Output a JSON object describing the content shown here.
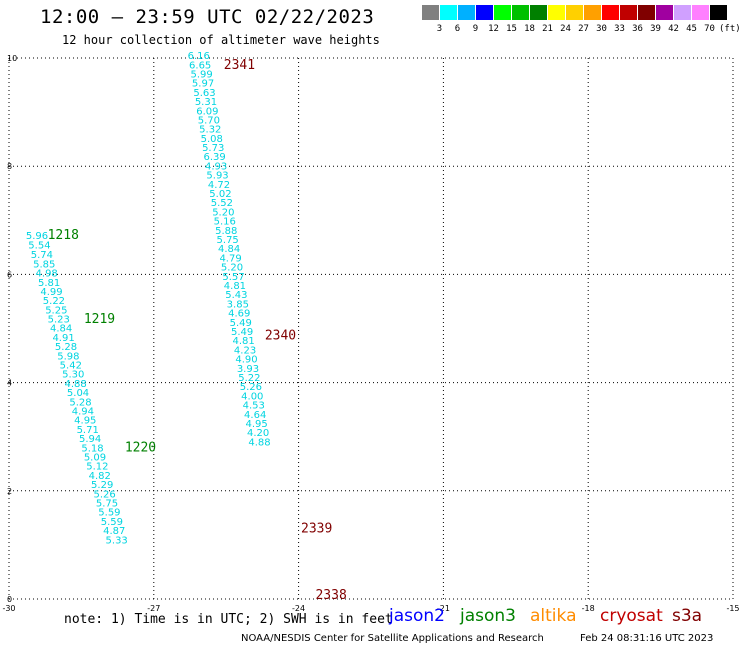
{
  "header": {
    "title": "12:00 – 23:59 UTC 02/22/2023",
    "subtitle": "12 hour collection of altimeter wave heights"
  },
  "scale": {
    "labels": [
      "3",
      "6",
      "9",
      "12",
      "15",
      "18",
      "21",
      "24",
      "27",
      "30",
      "33",
      "36",
      "39",
      "42",
      "45",
      "70",
      "(ft)"
    ],
    "colors": [
      "#808080",
      "#00ffff",
      "#00b0ff",
      "#0000ff",
      "#00ff00",
      "#00c000",
      "#008000",
      "#ffff00",
      "#ffd000",
      "#ffa000",
      "#ff0000",
      "#c00000",
      "#800000",
      "#a000a0",
      "#d0a0ff",
      "#ff80ff",
      "#000000"
    ]
  },
  "footer": {
    "note": "note: 1) Time is in UTC; 2) SWH is in feet",
    "missions": [
      {
        "name": "jason2",
        "color": "#0000ff"
      },
      {
        "name": "jason3",
        "color": "#008000"
      },
      {
        "name": "altika",
        "color": "#ff8c00"
      },
      {
        "name": "cryosat",
        "color": "#c00000"
      },
      {
        "name": "s3a",
        "color": "#800000"
      }
    ],
    "credit": "NOAA/NESDIS Center for Satellite Applications and Research",
    "timestamp": "Feb 24 08:31:16 UTC 2023"
  },
  "chart_data": {
    "type": "scatter",
    "xlim": [
      -30,
      -15
    ],
    "ylim": [
      0,
      10
    ],
    "x_ticks": [
      "-30",
      "-27",
      "-24",
      "-21",
      "-18",
      "-15"
    ],
    "y_ticks": [
      "0",
      "2",
      "4",
      "6",
      "8",
      "10"
    ],
    "grid": true,
    "tracks": [
      {
        "pass": "1218",
        "color": "#008000",
        "label_at": [
          -29.2,
          6.65
        ],
        "values": [
          [
            -29.65,
            6.65,
            "5.96"
          ],
          [
            -29.6,
            6.48,
            "5.54"
          ],
          [
            -29.55,
            6.3,
            "5.74"
          ],
          [
            -29.5,
            6.13,
            "5.85"
          ],
          [
            -29.45,
            5.96,
            "4.98"
          ],
          [
            -29.4,
            5.79,
            "5.81"
          ],
          [
            -29.35,
            5.62,
            "4.99"
          ],
          [
            -29.3,
            5.45,
            "5.22"
          ],
          [
            -29.25,
            5.28,
            "5.25"
          ],
          [
            -29.2,
            5.11,
            "5.23"
          ],
          [
            -29.15,
            4.94,
            "4.84"
          ],
          [
            -29.1,
            4.77,
            "4.91"
          ],
          [
            -29.05,
            4.6,
            "5.28"
          ],
          [
            -29.0,
            4.43,
            "5.98"
          ],
          [
            -28.95,
            4.26,
            "5.42"
          ],
          [
            -28.9,
            4.09,
            "5.30"
          ],
          [
            -28.85,
            3.92,
            "4.88"
          ],
          [
            -28.8,
            3.75,
            "5.04"
          ],
          [
            -28.75,
            3.58,
            "5.28"
          ],
          [
            -28.7,
            3.41,
            "4.94"
          ],
          [
            -28.65,
            3.24,
            "4.95"
          ],
          [
            -28.6,
            3.07,
            "5.71"
          ],
          [
            -28.55,
            2.9,
            "5.94"
          ],
          [
            -28.5,
            2.73,
            "5.18"
          ],
          [
            -28.45,
            2.56,
            "5.09"
          ],
          [
            -28.4,
            2.39,
            "5.12"
          ],
          [
            -28.35,
            2.22,
            "4.82"
          ],
          [
            -28.3,
            2.05,
            "5.29"
          ],
          [
            -28.25,
            1.88,
            "5.26"
          ],
          [
            -28.2,
            1.71,
            "5.75"
          ],
          [
            -28.15,
            1.54,
            "5.59"
          ],
          [
            -28.1,
            1.37,
            "5.59"
          ],
          [
            -28.05,
            1.2,
            "4.87"
          ],
          [
            -28.0,
            1.03,
            "5.33"
          ]
        ]
      },
      {
        "pass": "1219",
        "color": "#008000",
        "label_at": [
          -28.45,
          5.1
        ],
        "values": []
      },
      {
        "pass": "1220",
        "color": "#008000",
        "label_at": [
          -27.6,
          2.73
        ],
        "values": []
      },
      {
        "pass": "2341",
        "color": "#800000",
        "label_at": [
          -25.55,
          9.8
        ],
        "values": [
          [
            -26.3,
            9.98,
            "6.16"
          ],
          [
            -26.27,
            9.81,
            "6.65"
          ],
          [
            -26.24,
            9.64,
            "5.99"
          ],
          [
            -26.21,
            9.47,
            "5.97"
          ],
          [
            -26.18,
            9.3,
            "5.63"
          ],
          [
            -26.15,
            9.13,
            "5.31"
          ],
          [
            -26.12,
            8.96,
            "6.09"
          ],
          [
            -26.09,
            8.79,
            "5.70"
          ],
          [
            -26.06,
            8.62,
            "5.32"
          ],
          [
            -26.03,
            8.45,
            "5.08"
          ],
          [
            -26.0,
            8.28,
            "5.73"
          ],
          [
            -25.97,
            8.11,
            "6.39"
          ],
          [
            -25.94,
            7.94,
            "4.93"
          ],
          [
            -25.91,
            7.77,
            "5.93"
          ],
          [
            -25.88,
            7.6,
            "4.72"
          ],
          [
            -25.85,
            7.43,
            "5.02"
          ],
          [
            -25.82,
            7.26,
            "5.52"
          ],
          [
            -25.79,
            7.09,
            "5.20"
          ],
          [
            -25.76,
            6.92,
            "5.16"
          ],
          [
            -25.73,
            6.75,
            "5.88"
          ],
          [
            -25.7,
            6.58,
            "5.75"
          ],
          [
            -25.67,
            6.41,
            "4.84"
          ],
          [
            -25.64,
            6.24,
            "4.79"
          ],
          [
            -25.61,
            6.07,
            "5.20"
          ],
          [
            -25.58,
            5.9,
            "5.57"
          ],
          [
            -25.55,
            5.73,
            "4.81"
          ],
          [
            -25.52,
            5.56,
            "5.43"
          ],
          [
            -25.49,
            5.39,
            "3.85"
          ],
          [
            -25.46,
            5.22,
            "4.69"
          ],
          [
            -25.43,
            5.05,
            "5.49"
          ],
          [
            -25.4,
            4.88,
            "5.49"
          ],
          [
            -25.37,
            4.71,
            "4.81"
          ],
          [
            -25.34,
            4.54,
            "4.23"
          ],
          [
            -25.31,
            4.37,
            "4.90"
          ],
          [
            -25.28,
            4.2,
            "3.93"
          ],
          [
            -25.25,
            4.03,
            "5.22"
          ],
          [
            -25.22,
            3.86,
            "5.26"
          ],
          [
            -25.19,
            3.69,
            "4.00"
          ],
          [
            -25.16,
            3.52,
            "4.53"
          ],
          [
            -25.13,
            3.35,
            "4.64"
          ],
          [
            -25.1,
            3.18,
            "4.95"
          ],
          [
            -25.07,
            3.01,
            "4.20"
          ],
          [
            -25.04,
            2.84,
            "4.88"
          ]
        ]
      },
      {
        "pass": "2340",
        "color": "#800000",
        "label_at": [
          -24.7,
          4.8
        ],
        "values": []
      },
      {
        "pass": "2339",
        "color": "#800000",
        "label_at": [
          -23.95,
          1.23
        ],
        "values": []
      },
      {
        "pass": "2338",
        "color": "#800000",
        "label_at": [
          -23.65,
          0.0
        ],
        "values": []
      }
    ]
  }
}
